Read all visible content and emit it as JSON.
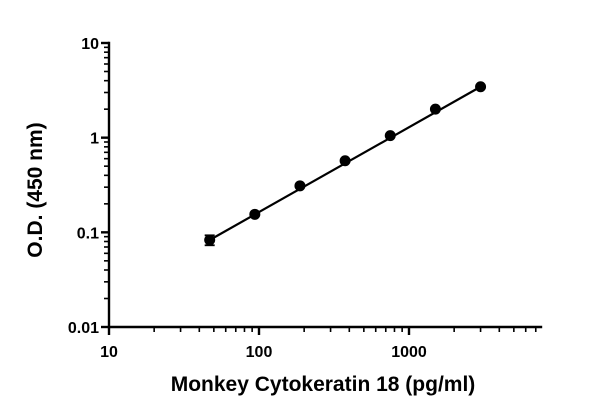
{
  "chart_data": {
    "type": "scatter",
    "title": "",
    "xlabel": "Monkey Cytokeratin 18 (pg/ml)",
    "ylabel": "O.D. (450 nm)",
    "x_scale": "log",
    "y_scale": "log",
    "xlim": [
      10,
      8000
    ],
    "ylim": [
      0.01,
      10
    ],
    "x_ticks": [
      10,
      100,
      1000
    ],
    "x_tick_labels": [
      "10",
      "100",
      "1000"
    ],
    "y_ticks": [
      0.01,
      0.1,
      1,
      10
    ],
    "y_tick_labels": [
      "0.01",
      "0.1",
      "1",
      "10"
    ],
    "grid": false,
    "legend": "none",
    "series": [
      {
        "x": [
          46.9,
          93.8,
          187.5,
          375,
          750,
          1500,
          3000
        ],
        "y": [
          0.083,
          0.155,
          0.31,
          0.57,
          1.05,
          2.0,
          3.45
        ],
        "y_err": [
          0.01,
          0.005,
          0.01,
          0.02,
          0.03,
          0.05,
          0.08
        ]
      }
    ],
    "fit": {
      "type": "line",
      "x": [
        46.9,
        3000
      ],
      "y": [
        0.083,
        3.45
      ]
    }
  }
}
